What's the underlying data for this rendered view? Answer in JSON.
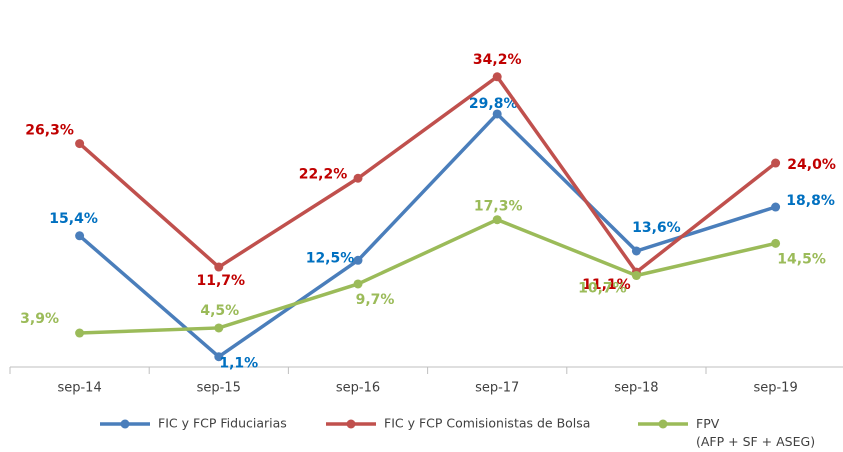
{
  "chart_data": {
    "type": "line",
    "categories": [
      "sep-14",
      "sep-15",
      "sep-16",
      "sep-17",
      "sep-18",
      "sep-19"
    ],
    "ylim": [
      0,
      35
    ],
    "series": [
      {
        "name": "FIC y FCP Fiduciarias",
        "color": "#4a7ebb",
        "label_color": "#0070c0",
        "values": [
          15.4,
          1.1,
          12.5,
          29.8,
          13.6,
          18.8
        ],
        "value_labels": [
          "15,4%",
          "1,1%",
          "12,5%",
          "29,8%",
          "13,6%",
          "18,8%"
        ]
      },
      {
        "name": "FIC y FCP Comisionistas de Bolsa",
        "color": "#c0504d",
        "label_color": "#c00000",
        "values": [
          26.3,
          11.7,
          22.2,
          34.2,
          11.1,
          24.0
        ],
        "value_labels": [
          "26,3%",
          "11,7%",
          "22,2%",
          "34,2%",
          "11,1%",
          "24,0%"
        ]
      },
      {
        "name": "FPV\n(AFP + SF + ASEG)",
        "color": "#9bbb59",
        "label_color": "#9bbb59",
        "values": [
          3.9,
          4.5,
          9.7,
          17.3,
          10.7,
          14.5
        ],
        "value_labels": [
          "3,9%",
          "4,5%",
          "9,7%",
          "17,3%",
          "10,7%",
          "14,5%"
        ]
      }
    ],
    "legend": "bottom"
  }
}
